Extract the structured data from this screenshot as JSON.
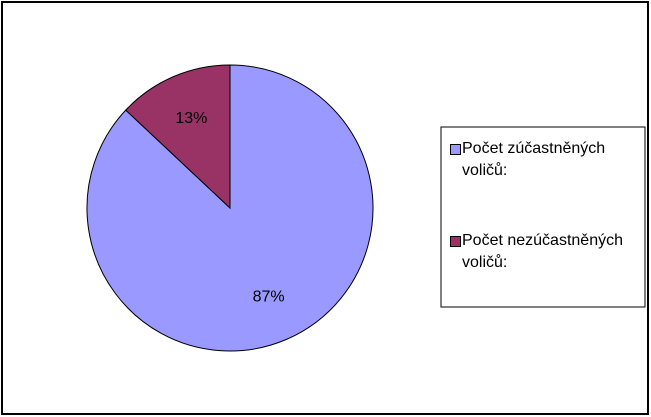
{
  "chart_data": {
    "type": "pie",
    "categories": [
      "Počet zúčastněných voličů:",
      "Počet nezúčastněných voličů:"
    ],
    "values": [
      87,
      13
    ],
    "value_labels": [
      "87%",
      "13%"
    ],
    "colors": [
      "#9999ff",
      "#993366"
    ],
    "legend": "right"
  }
}
